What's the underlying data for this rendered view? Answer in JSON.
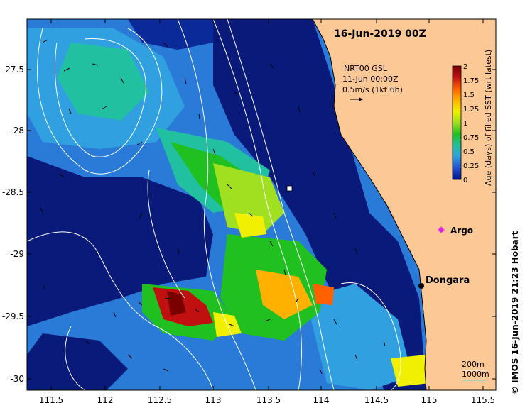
{
  "title": "16-Jun-2019 00Z",
  "product": {
    "line1": "NRT00 GSL",
    "line2": "11-Jun 00:00Z",
    "line3": "0.5m/s (1kt 6h)"
  },
  "colorbar": {
    "label": "Age (days) of filled SST (wrt latest)",
    "ticks": [
      "2",
      "1.75",
      "1.5",
      "1.25",
      "1",
      "0.75",
      "0.5",
      "0.25",
      "0"
    ],
    "colors": [
      "#7a0000",
      "#c01010",
      "#ff6000",
      "#ffb000",
      "#f0f000",
      "#a0e020",
      "#20c020",
      "#20c0a0",
      "#30a0e0",
      "#2050d0",
      "#00108a"
    ]
  },
  "axes": {
    "x_ticks": [
      "111.5",
      "112",
      "112.5",
      "113",
      "113.5",
      "114",
      "114.5",
      "115",
      "115.5"
    ],
    "y_ticks": [
      "-27.5",
      "-28",
      "-28.5",
      "-29",
      "-29.5",
      "-30"
    ]
  },
  "markers": {
    "argo_label": "Argo",
    "town_label": "Dongara"
  },
  "contours": {
    "shallow_label": "200m",
    "deep_label": "1000m"
  },
  "credit": "© IMOS 16-Jun-2019 21:23 Hobart",
  "colors": {
    "land": "#fcc896",
    "ocean_deep": "#0a1a7a",
    "ocean_mid": "#2a7ad8",
    "argo": "#e020e0"
  }
}
